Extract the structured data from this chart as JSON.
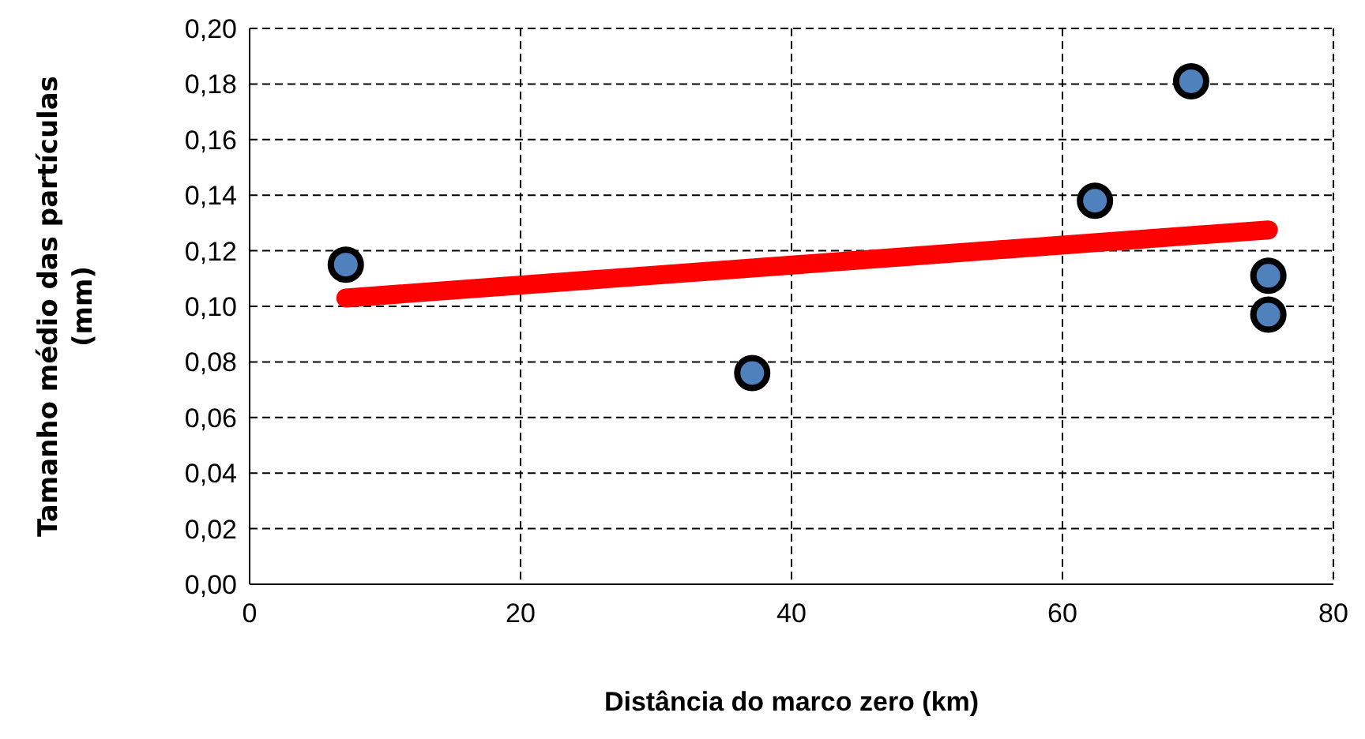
{
  "chart_data": {
    "type": "scatter",
    "xlabel": "Distância do marco zero (km)",
    "ylabel": "Tamanho médio das partículas (mm)",
    "series": [
      {
        "color": "#4f81bd",
        "marker": "circle",
        "x": [
          7.1,
          37.1,
          62.4,
          69.5,
          75.2,
          75.2
        ],
        "values": [
          0.115,
          0.076,
          0.138,
          0.181,
          0.111,
          0.097
        ]
      },
      {
        "type": "line",
        "color": "#ff0000",
        "x": [
          7.1,
          75.2
        ],
        "values": [
          0.103,
          0.1275
        ]
      }
    ],
    "xlim": [
      0,
      80
    ],
    "xticks": [
      0,
      20,
      40,
      60,
      80
    ],
    "ylim": [
      0,
      0.2
    ],
    "yticks": [
      {
        "value": 0,
        "label": "0,00"
      },
      {
        "value": 0.02,
        "label": "0,02"
      },
      {
        "value": 0.04,
        "label": "0,04"
      },
      {
        "value": 0.06,
        "label": "0,06"
      },
      {
        "value": 0.08,
        "label": "0,08"
      },
      {
        "value": 0.1,
        "label": "0,10"
      },
      {
        "value": 0.12,
        "label": "0,12"
      },
      {
        "value": 0.14,
        "label": "0,14"
      },
      {
        "value": 0.16,
        "label": "0,16"
      },
      {
        "value": 0.18,
        "label": "0,18"
      },
      {
        "value": 0.2,
        "label": "0,20"
      }
    ],
    "grid": true,
    "line_style": "solid",
    "legend": false
  }
}
